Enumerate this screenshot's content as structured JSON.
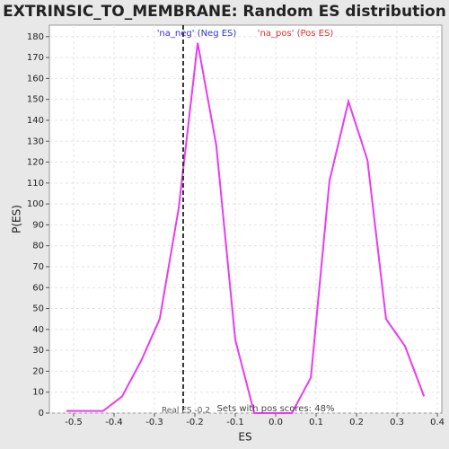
{
  "chart_data": {
    "type": "line",
    "title": "EXTRINSIC_TO_MEMBRANE: Random ES distribution",
    "x_label": "ES",
    "y_label": "P(ES)",
    "x": [
      -0.518,
      -0.471,
      -0.427,
      -0.38,
      -0.333,
      -0.287,
      -0.24,
      -0.193,
      -0.147,
      -0.1,
      -0.053,
      -0.007,
      0.04,
      0.087,
      0.133,
      0.18,
      0.227,
      0.273,
      0.32,
      0.367
    ],
    "series": [
      {
        "name": "P(ES)",
        "color": "#e83cf0",
        "values": [
          1,
          1,
          1,
          8,
          25,
          45,
          98,
          177,
          128,
          35,
          0,
          0,
          0,
          17,
          111,
          149,
          121,
          45,
          32,
          8
        ]
      }
    ],
    "xlim": [
      -0.56,
      0.411
    ],
    "ylim": [
      0,
      185.5
    ],
    "xticks": [
      -0.5,
      -0.4,
      -0.3,
      -0.2,
      -0.1,
      {
        "value": 0,
        "label": "0.0"
      },
      0.1,
      0.2,
      0.3,
      0.4
    ],
    "yticks": [
      0,
      10,
      20,
      30,
      40,
      50,
      60,
      70,
      80,
      90,
      100,
      110,
      120,
      130,
      140,
      150,
      160,
      170,
      180
    ],
    "grid": true,
    "real_es": -0.229,
    "annotations": {
      "neg": "'na_neg' (Neg ES)",
      "neg_color": "#3333cc",
      "pos": "'na_pos' (Pos ES)",
      "pos_color": "#e03030",
      "real_es_label": "Real ES -0.2",
      "pos_scores": "Sets with pos scores: 48%"
    }
  }
}
